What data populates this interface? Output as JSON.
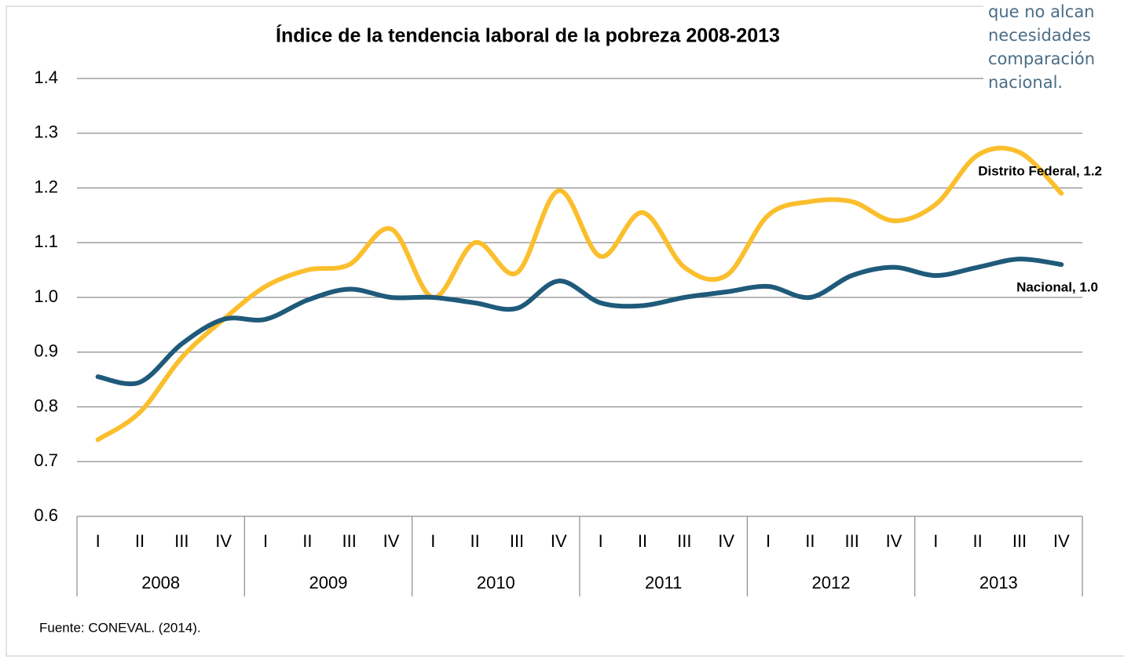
{
  "chart_data": {
    "type": "line",
    "title": "Índice de la tendencia laboral de la pobreza 2008-2013",
    "categories": [
      "I",
      "II",
      "III",
      "IV",
      "I",
      "II",
      "III",
      "IV",
      "I",
      "II",
      "III",
      "IV",
      "I",
      "II",
      "III",
      "IV",
      "I",
      "II",
      "III",
      "IV",
      "I",
      "II",
      "III",
      "IV"
    ],
    "years": [
      "2008",
      "2009",
      "2010",
      "2011",
      "2012",
      "2013"
    ],
    "series": [
      {
        "name": "Nacional",
        "color": "#1f5a7a",
        "values": [
          0.855,
          0.845,
          0.915,
          0.96,
          0.96,
          0.995,
          1.015,
          1.0,
          1.0,
          0.99,
          0.98,
          1.03,
          0.99,
          0.985,
          1.0,
          1.01,
          1.02,
          1.0,
          1.04,
          1.055,
          1.04,
          1.055,
          1.07,
          1.06
        ]
      },
      {
        "name": "Distrito Federal",
        "color": "#fbbf2d",
        "values": [
          0.74,
          0.79,
          0.89,
          0.96,
          1.02,
          1.05,
          1.06,
          1.125,
          1.0,
          1.1,
          1.045,
          1.195,
          1.075,
          1.155,
          1.055,
          1.04,
          1.15,
          1.175,
          1.175,
          1.14,
          1.17,
          1.26,
          1.265,
          1.19
        ]
      }
    ],
    "annotations": [
      "Nacional, 1.0",
      "Distrito Federal, 1.2"
    ],
    "ylim": [
      0.6,
      1.4
    ],
    "yticks": [
      0.6,
      0.7,
      0.8,
      0.9,
      {
        "value": 1,
        "label": "1.0"
      },
      1.1,
      1.2,
      1.3,
      1.4
    ],
    "grid": true,
    "source": "Fuente: CONEVAL. (2014)."
  },
  "side_text": [
    "que no alcan",
    "necesidades",
    "comparación",
    "nacional."
  ]
}
